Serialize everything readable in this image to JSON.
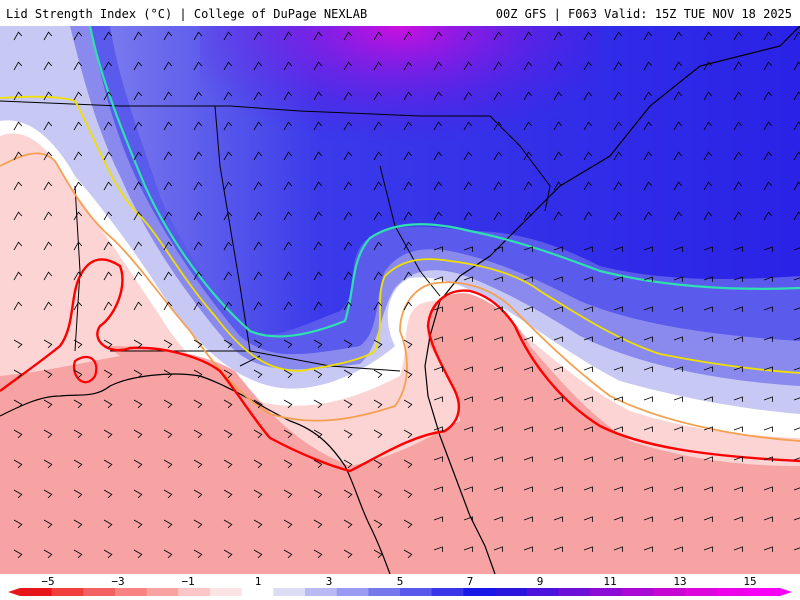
{
  "header": {
    "title": "Lid Strength Index (°C) | College of DuPage NEXLAB",
    "run_info": "00Z GFS | F063 Valid: 15Z TUE NOV 18 2025"
  },
  "colorbar": {
    "labels": [
      "−5",
      "−3",
      "−1",
      "1",
      "3",
      "5",
      "7",
      "9",
      "11",
      "13",
      "15"
    ],
    "bins": [
      "#e8161b",
      "#ef3f3f",
      "#f26262",
      "#f78383",
      "#f9a3a3",
      "#fcc6c6",
      "#fde3e3",
      "#ffffff",
      "#dcdcf4",
      "#babaf2",
      "#9a9af0",
      "#7878ee",
      "#5858ec",
      "#3838ea",
      "#1818e6",
      "#2a14e0",
      "#4a12dc",
      "#6a10d8",
      "#8a0cd6",
      "#aa08d4",
      "#c806d2",
      "#e004dc",
      "#ee02ea",
      "#f800f6"
    ]
  },
  "map": {
    "contours": [
      {
        "value": -1,
        "color": "#ff0000"
      },
      {
        "value": 1,
        "color": "#f5a050"
      },
      {
        "value": 4,
        "color": "#f0e000"
      },
      {
        "value": 6,
        "color": "#30e0b0"
      }
    ]
  }
}
